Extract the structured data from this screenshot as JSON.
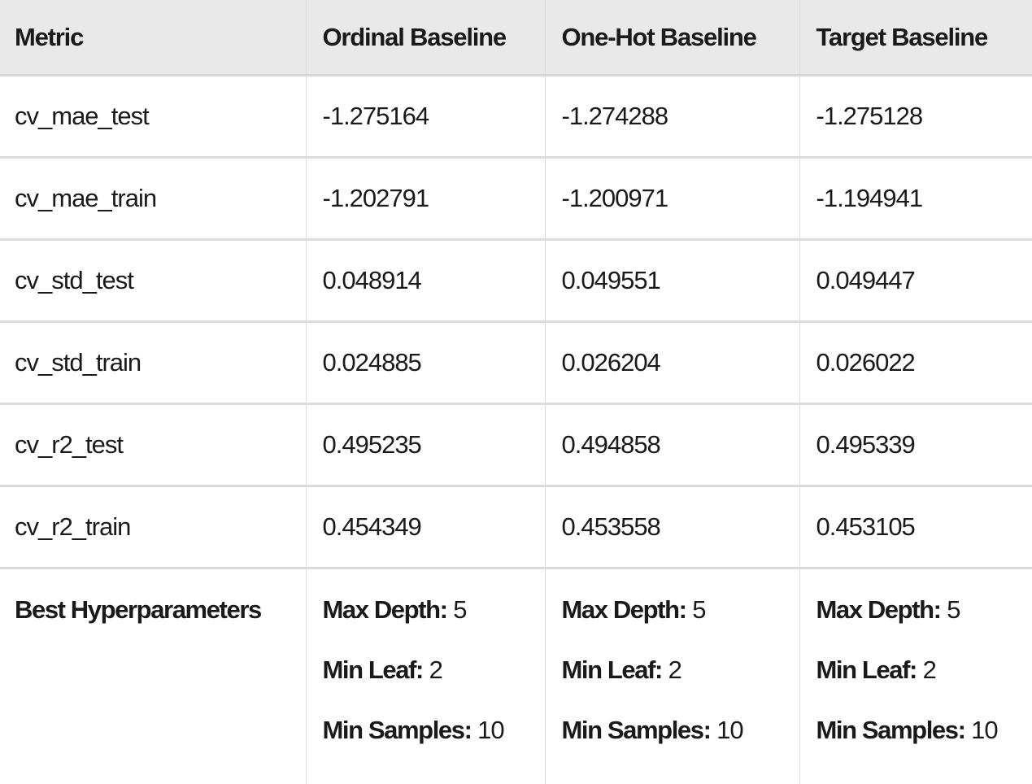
{
  "headers": [
    "Metric",
    "Ordinal Baseline",
    "One-Hot Baseline",
    "Target Baseline"
  ],
  "rows": [
    {
      "metric": "cv_mae_test",
      "values": [
        "-1.275164",
        "-1.274288",
        "-1.275128"
      ]
    },
    {
      "metric": "cv_mae_train",
      "values": [
        "-1.202791",
        "-1.200971",
        "-1.194941"
      ]
    },
    {
      "metric": "cv_std_test",
      "values": [
        "0.048914",
        "0.049551",
        "0.049447"
      ]
    },
    {
      "metric": "cv_std_train",
      "values": [
        "0.024885",
        "0.026204",
        "0.026022"
      ]
    },
    {
      "metric": "cv_r2_test",
      "values": [
        "0.495235",
        "0.494858",
        "0.495339"
      ]
    },
    {
      "metric": "cv_r2_train",
      "values": [
        "0.454349",
        "0.453558",
        "0.453105"
      ]
    }
  ],
  "hyperparameters": {
    "label": "Best Hyperparameters",
    "columns": [
      [
        {
          "key": "Max Depth:",
          "value": "5"
        },
        {
          "key": "Min Leaf:",
          "value": "2"
        },
        {
          "key": "Min Samples:",
          "value": "10"
        }
      ],
      [
        {
          "key": "Max Depth:",
          "value": "5"
        },
        {
          "key": "Min Leaf:",
          "value": "2"
        },
        {
          "key": "Min Samples:",
          "value": "10"
        }
      ],
      [
        {
          "key": "Max Depth:",
          "value": "5"
        },
        {
          "key": "Min Leaf:",
          "value": "2"
        },
        {
          "key": "Min Samples:",
          "value": "10"
        }
      ]
    ]
  }
}
